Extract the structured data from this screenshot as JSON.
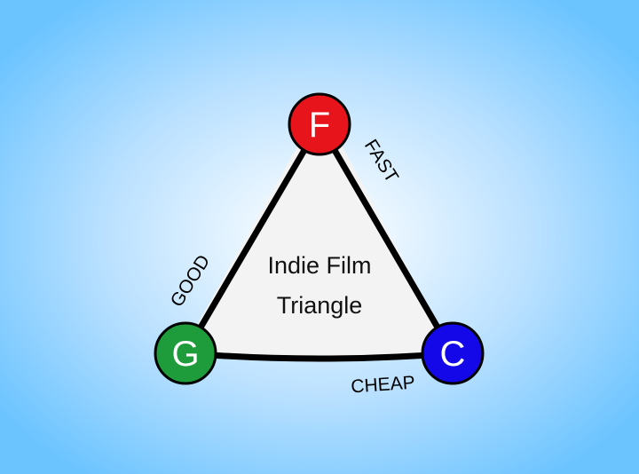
{
  "diagram": {
    "title_lines": [
      "Indie Film",
      "Triangle"
    ],
    "nodes": [
      {
        "letter": "F",
        "color": "#e8141b"
      },
      {
        "letter": "G",
        "color": "#1e9b3a"
      },
      {
        "letter": "C",
        "color": "#1408e8"
      }
    ],
    "edges": [
      {
        "label": "FAST"
      },
      {
        "label": "GOOD"
      },
      {
        "label": "CHEAP"
      }
    ]
  }
}
